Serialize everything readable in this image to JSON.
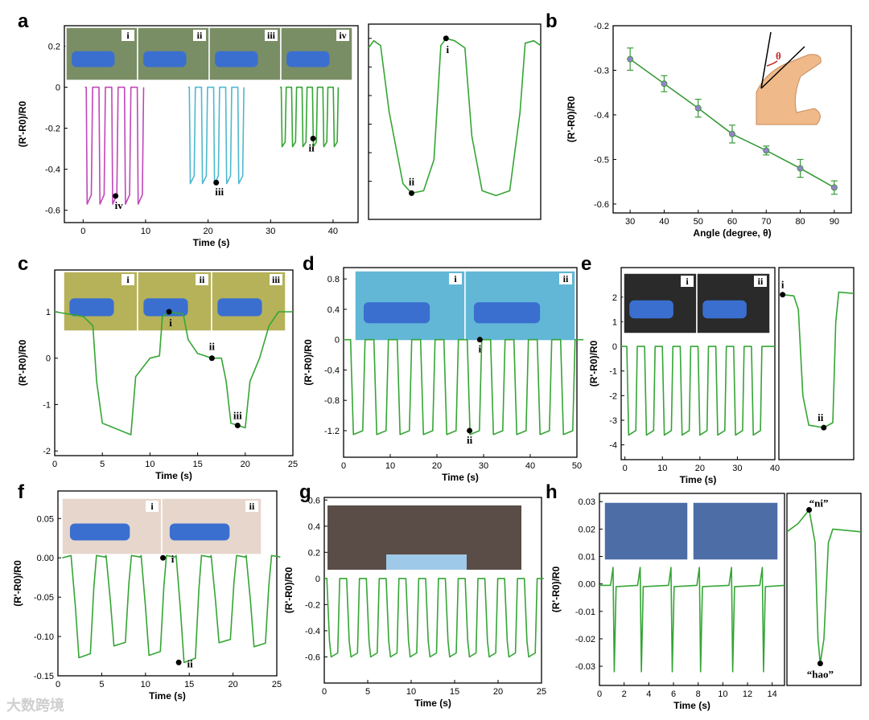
{
  "watermark": "大数跨境",
  "colors": {
    "green": "#35a535",
    "magenta": "#c047b8",
    "cyan": "#4fb8cf",
    "line_b": "#3a9a3a"
  },
  "chart_data": [
    {
      "id": "a",
      "panel": "a",
      "type": "line",
      "xlabel": "Time (s)",
      "ylabel": "(R'-R0)/R0",
      "xlim": [
        -3,
        44
      ],
      "ylim": [
        -0.66,
        0.3
      ],
      "xticks": [
        0,
        10,
        20,
        30,
        40
      ],
      "yticks": [
        0.2,
        0.0,
        -0.2,
        -0.4,
        -0.6
      ],
      "photo_tags": [
        "i",
        "ii",
        "iii",
        "iv"
      ],
      "series": [
        {
          "name": "iv",
          "color": "#c047b8",
          "t0": 0.3,
          "t1": 10.5,
          "bottom": -0.57,
          "cycles": 5
        },
        {
          "name": "iii",
          "color": "#4fb8cf",
          "t0": 16.8,
          "t1": 26.5,
          "bottom": -0.47,
          "cycles": 5
        },
        {
          "name": "ii",
          "color": "#35a535",
          "t0": 31.5,
          "t1": 41.5,
          "bottom": -0.29,
          "cycles": 6
        }
      ],
      "annotations": [
        {
          "label": "iv",
          "x": 5.2,
          "y": -0.53
        },
        {
          "label": "iii",
          "x": 21.3,
          "y": -0.465
        },
        {
          "label": "ii",
          "x": 36.8,
          "y": -0.25
        }
      ]
    },
    {
      "id": "a2",
      "panel": "a",
      "type": "line",
      "xlabel": "",
      "ylabel": "",
      "zoom": true,
      "annotations": [
        {
          "label": "i",
          "x": 0.45,
          "y": 0.06
        },
        {
          "label": "ii",
          "x": 0.25,
          "y": -0.59
        }
      ]
    },
    {
      "id": "b",
      "panel": "b",
      "type": "line_errorbar",
      "xlabel": "Angle (degree, θ)",
      "ylabel": "(R'-R0)/R0",
      "xlim": [
        25,
        95
      ],
      "ylim": [
        -0.62,
        -0.2
      ],
      "xticks": [
        30,
        40,
        50,
        60,
        70,
        80,
        90
      ],
      "yticks": [
        -0.2,
        -0.3,
        -0.4,
        -0.5,
        -0.6
      ],
      "x": [
        30,
        40,
        50,
        60,
        70,
        80,
        90
      ],
      "y": [
        -0.275,
        -0.33,
        -0.385,
        -0.443,
        -0.48,
        -0.52,
        -0.563
      ],
      "err": [
        0.025,
        0.018,
        0.02,
        0.02,
        0.01,
        0.02,
        0.015
      ],
      "inset_label": "θ"
    },
    {
      "id": "c",
      "panel": "c",
      "type": "line",
      "xlabel": "Time (s)",
      "ylabel": "(R'-R0)/R0",
      "xlim": [
        0,
        25
      ],
      "ylim": [
        -2.1,
        1.9
      ],
      "xticks": [
        0,
        5,
        10,
        15,
        20,
        25
      ],
      "yticks": [
        1,
        0,
        -1,
        -2
      ],
      "photo_tags": [
        "i",
        "ii",
        "iii"
      ],
      "points": [
        [
          0,
          1
        ],
        [
          3,
          0.9
        ],
        [
          4,
          0.7
        ],
        [
          4.4,
          -0.5
        ],
        [
          5,
          -1.4
        ],
        [
          8,
          -1.65
        ],
        [
          8.5,
          -0.4
        ],
        [
          10,
          0
        ],
        [
          11,
          0.05
        ],
        [
          11.3,
          0.9
        ],
        [
          12,
          1
        ],
        [
          13.5,
          0.95
        ],
        [
          14,
          0.4
        ],
        [
          15,
          0.1
        ],
        [
          16.5,
          0
        ],
        [
          17.5,
          0
        ],
        [
          18,
          -0.5
        ],
        [
          18.5,
          -1.4
        ],
        [
          20,
          -1.5
        ],
        [
          20.5,
          -0.5
        ],
        [
          21.5,
          0
        ],
        [
          22.5,
          0.7
        ],
        [
          23.5,
          1
        ],
        [
          25,
          1
        ]
      ],
      "annotations": [
        {
          "label": "i",
          "x": 12,
          "y": 1
        },
        {
          "label": "ii",
          "x": 16.5,
          "y": 0
        },
        {
          "label": "iii",
          "x": 19.2,
          "y": -1.45
        }
      ]
    },
    {
      "id": "d",
      "panel": "d",
      "type": "line",
      "xlabel": "Time (s)",
      "ylabel": "(R'-R0)/R0",
      "xlim": [
        0,
        50
      ],
      "ylim": [
        -1.55,
        0.95
      ],
      "xticks": [
        0,
        10,
        20,
        30,
        40,
        50
      ],
      "yticks": [
        0.8,
        0.4,
        0.0,
        -0.4,
        -0.8,
        -1.2
      ],
      "photo_tags": [
        "i",
        "ii"
      ],
      "cycles": 10,
      "bottom": -1.25,
      "annotations": [
        {
          "label": "i",
          "x": 29.2,
          "y": 0
        },
        {
          "label": "ii",
          "x": 27,
          "y": -1.2
        }
      ]
    },
    {
      "id": "e",
      "panel": "e",
      "type": "line",
      "xlabel": "Time (s)",
      "ylabel": "(R'-R0)/R0",
      "xlim": [
        -1,
        40
      ],
      "ylim": [
        -4.6,
        3.2
      ],
      "xticks": [
        0,
        10,
        20,
        30,
        40
      ],
      "yticks": [
        2,
        1,
        0,
        -1,
        -2,
        -3,
        -4
      ],
      "photo_tags": [
        "i",
        "ii"
      ],
      "cycles": 8,
      "bottom": -3.6
    },
    {
      "id": "e2",
      "panel": "e",
      "type": "line",
      "xlabel": "",
      "ylabel": "",
      "zoom": true,
      "annotations": [
        {
          "label": "i",
          "x": 0.05,
          "y": 2.1
        },
        {
          "label": "ii",
          "x": 0.6,
          "y": -3.3
        }
      ]
    },
    {
      "id": "f",
      "panel": "f",
      "type": "line",
      "xlabel": "Time (s)",
      "ylabel": "(R'-R0)/R0",
      "xlim": [
        0,
        25
      ],
      "ylim": [
        -0.15,
        0.085
      ],
      "xticks": [
        0,
        5,
        10,
        15,
        20,
        25
      ],
      "yticks": [
        0.05,
        0.0,
        -0.05,
        -0.1,
        -0.15
      ],
      "photo_tags": [
        "i",
        "ii"
      ],
      "cycles": 6,
      "annotations": [
        {
          "label": "i",
          "x": 12,
          "y": 0
        },
        {
          "label": "ii",
          "x": 13.8,
          "y": -0.133
        }
      ]
    },
    {
      "id": "g",
      "panel": "g",
      "type": "line",
      "xlabel": "Time (s)",
      "ylabel": "(R'-R0)/R0",
      "xlim": [
        0,
        25
      ],
      "ylim": [
        -0.8,
        0.62
      ],
      "xticks": [
        0,
        5,
        10,
        15,
        20,
        25
      ],
      "yticks": [
        0.6,
        0.4,
        0.2,
        0.0,
        -0.2,
        -0.4,
        -0.6
      ],
      "cycles": 11,
      "bottom": -0.6
    },
    {
      "id": "h",
      "panel": "h",
      "type": "line",
      "xlabel": "Time (s)",
      "ylabel": "(R'-R0)/R0",
      "xlim": [
        0,
        15
      ],
      "ylim": [
        -0.037,
        0.033
      ],
      "xticks": [
        0,
        2,
        4,
        6,
        8,
        10,
        12,
        14
      ],
      "yticks": [
        0.03,
        0.02,
        0.01,
        0.0,
        -0.01,
        -0.02,
        -0.03
      ],
      "spikes": [
        1.1,
        3.3,
        5.8,
        8.1,
        10.7,
        13.2
      ]
    },
    {
      "id": "h2",
      "panel": "h",
      "type": "line",
      "xlabel": "",
      "ylabel": "",
      "zoom": true,
      "annotations": [
        {
          "label": "“ni”",
          "x": 0.3,
          "y": 0.027
        },
        {
          "label": "“hao”",
          "x": 0.45,
          "y": -0.029
        }
      ]
    }
  ]
}
